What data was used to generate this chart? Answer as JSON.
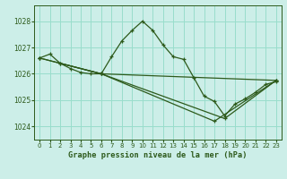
{
  "title": "Graphe pression niveau de la mer (hPa)",
  "bg_color": "#cceee8",
  "grid_color": "#99ddcc",
  "line_color": "#2d5a1b",
  "xlim": [
    -0.5,
    23.5
  ],
  "ylim": [
    1023.5,
    1028.6
  ],
  "yticks": [
    1024,
    1025,
    1026,
    1027,
    1028
  ],
  "xticks": [
    0,
    1,
    2,
    3,
    4,
    5,
    6,
    7,
    8,
    9,
    10,
    11,
    12,
    13,
    14,
    15,
    16,
    17,
    18,
    19,
    20,
    21,
    22,
    23
  ],
  "series": [
    {
      "x": [
        0,
        1,
        2,
        3,
        4,
        5,
        6,
        7,
        8,
        9,
        10,
        11,
        12,
        13,
        14,
        15,
        16,
        17,
        18,
        19,
        20,
        21,
        22,
        23
      ],
      "y": [
        1026.6,
        1026.75,
        1026.4,
        1026.2,
        1026.05,
        1026.0,
        1026.0,
        1026.65,
        1027.25,
        1027.65,
        1028.0,
        1027.65,
        1027.1,
        1026.65,
        1026.55,
        1025.85,
        1025.15,
        1024.95,
        1024.4,
        1024.85,
        1025.05,
        1025.3,
        1025.6,
        1025.7
      ]
    },
    {
      "x": [
        0,
        6,
        23
      ],
      "y": [
        1026.6,
        1026.0,
        1025.75
      ]
    },
    {
      "x": [
        2,
        6,
        17,
        23
      ],
      "y": [
        1026.4,
        1026.0,
        1024.2,
        1025.75
      ]
    },
    {
      "x": [
        0,
        6,
        18,
        23
      ],
      "y": [
        1026.6,
        1026.0,
        1024.3,
        1025.75
      ]
    }
  ]
}
